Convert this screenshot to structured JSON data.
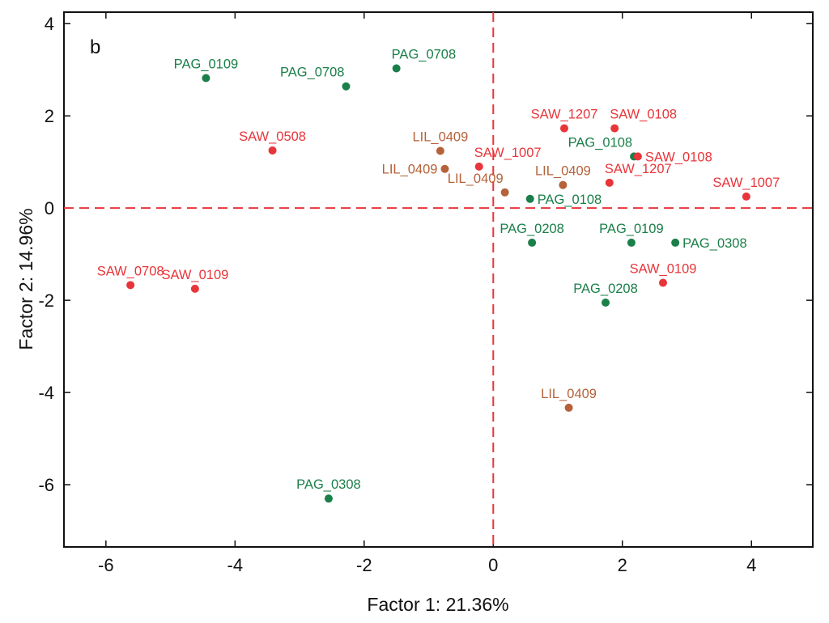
{
  "chart_data": {
    "type": "scatter",
    "panel_label": "b",
    "xlabel": "Factor 1: 21.36%",
    "ylabel": "Factor 2: 14.96%",
    "xlim": [
      -6.65,
      4.95
    ],
    "ylim": [
      -7.35,
      4.25
    ],
    "xticks": [
      -6,
      -4,
      -2,
      0,
      2,
      4
    ],
    "yticks": [
      -6,
      -4,
      -2,
      0,
      2,
      4
    ],
    "reference_lines": {
      "x": 0,
      "y": 0,
      "style": "dashed"
    },
    "groups": [
      {
        "name": "SAW",
        "color": "#e8353a"
      },
      {
        "name": "PAG",
        "color": "#1a7f49"
      },
      {
        "name": "LIL",
        "color": "#b5623a"
      }
    ],
    "points": [
      {
        "label": "PAG_0109",
        "group": "PAG",
        "x": -4.45,
        "y": 2.82,
        "anchor": "above"
      },
      {
        "label": "PAG_0708",
        "group": "PAG",
        "x": -2.28,
        "y": 2.64,
        "anchor": "above-left"
      },
      {
        "label": "PAG_0708",
        "group": "PAG",
        "x": -1.5,
        "y": 3.03,
        "anchor": "above-right"
      },
      {
        "label": "SAW_0508",
        "group": "SAW",
        "x": -3.42,
        "y": 1.25,
        "anchor": "above"
      },
      {
        "label": "LIL_0409",
        "group": "LIL",
        "x": -0.82,
        "y": 1.24,
        "anchor": "above"
      },
      {
        "label": "LIL_0409",
        "group": "LIL",
        "x": -0.75,
        "y": 0.85,
        "anchor": "left"
      },
      {
        "label": "SAW_1007",
        "group": "SAW",
        "x": -0.22,
        "y": 0.9,
        "anchor": "above-right"
      },
      {
        "label": "LIL_0409",
        "group": "LIL",
        "x": 0.18,
        "y": 0.34,
        "anchor": "above-left"
      },
      {
        "label": "PAG_0108",
        "group": "PAG",
        "x": 0.57,
        "y": 0.2,
        "anchor": "right"
      },
      {
        "label": "LIL_0409",
        "group": "LIL",
        "x": 1.08,
        "y": 0.5,
        "anchor": "above"
      },
      {
        "label": "SAW_1207",
        "group": "SAW",
        "x": 1.1,
        "y": 1.73,
        "anchor": "above"
      },
      {
        "label": "SAW_0108",
        "group": "SAW",
        "x": 1.88,
        "y": 1.73,
        "anchor": "above-right"
      },
      {
        "label": "PAG_0108",
        "group": "PAG",
        "x": 2.18,
        "y": 1.12,
        "anchor": "above-left"
      },
      {
        "label": "SAW_0108",
        "group": "SAW",
        "x": 2.24,
        "y": 1.12,
        "anchor": "right"
      },
      {
        "label": "SAW_1207",
        "group": "SAW",
        "x": 1.8,
        "y": 0.55,
        "anchor": "above-right"
      },
      {
        "label": "SAW_1007",
        "group": "SAW",
        "x": 3.92,
        "y": 0.25,
        "anchor": "above"
      },
      {
        "label": "PAG_0208",
        "group": "PAG",
        "x": 0.6,
        "y": -0.75,
        "anchor": "above"
      },
      {
        "label": "PAG_0109",
        "group": "PAG",
        "x": 2.14,
        "y": -0.75,
        "anchor": "above"
      },
      {
        "label": "PAG_0308",
        "group": "PAG",
        "x": 2.82,
        "y": -0.75,
        "anchor": "right"
      },
      {
        "label": "SAW_0109",
        "group": "SAW",
        "x": 2.63,
        "y": -1.62,
        "anchor": "above"
      },
      {
        "label": "PAG_0208",
        "group": "PAG",
        "x": 1.74,
        "y": -2.05,
        "anchor": "above"
      },
      {
        "label": "SAW_0708",
        "group": "SAW",
        "x": -5.62,
        "y": -1.67,
        "anchor": "above"
      },
      {
        "label": "SAW_0109",
        "group": "SAW",
        "x": -4.62,
        "y": -1.75,
        "anchor": "above"
      },
      {
        "label": "LIL_0409",
        "group": "LIL",
        "x": 1.17,
        "y": -4.33,
        "anchor": "above"
      },
      {
        "label": "PAG_0308",
        "group": "PAG",
        "x": -2.55,
        "y": -6.3,
        "anchor": "above"
      }
    ]
  }
}
